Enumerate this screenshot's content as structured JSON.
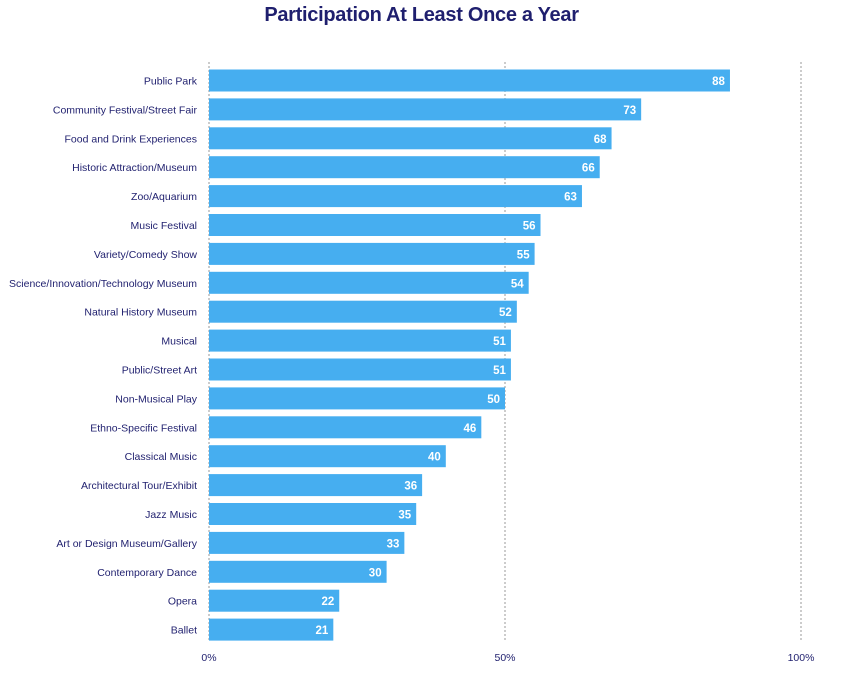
{
  "colors": {
    "bar": "#46aef0",
    "title": "#1f1f6e",
    "label": "#1f1f6e",
    "value": "#ffffff",
    "grid": "#9a9a9a"
  },
  "chart_data": {
    "type": "bar",
    "orientation": "horizontal",
    "title": "Participation At Least Once a Year",
    "xlabel": "",
    "ylabel": "",
    "xlim": [
      0,
      100
    ],
    "grid": true,
    "ticks": [
      {
        "value": 0,
        "label": "0%"
      },
      {
        "value": 50,
        "label": "50%"
      },
      {
        "value": 100,
        "label": "100%"
      }
    ],
    "categories": [
      "Public Park",
      "Community Festival/Street Fair",
      "Food and Drink Experiences",
      "Historic Attraction/Museum",
      "Zoo/Aquarium",
      "Music Festival",
      "Variety/Comedy Show",
      "Science/Innovation/Technology Museum",
      "Natural History Museum",
      "Musical",
      "Public/Street Art",
      "Non-Musical Play",
      "Ethno-Specific Festival",
      "Classical Music",
      "Architectural Tour/Exhibit",
      "Jazz Music",
      "Art or Design Museum/Gallery",
      "Contemporary Dance",
      "Opera",
      "Ballet"
    ],
    "values": [
      88,
      73,
      68,
      66,
      63,
      56,
      55,
      54,
      52,
      51,
      51,
      50,
      46,
      40,
      36,
      35,
      33,
      30,
      22,
      21
    ],
    "value_labels": [
      "88",
      "73",
      "68",
      "66",
      "63",
      "56",
      "55",
      "54",
      "52",
      "51",
      "51",
      "50",
      "46",
      "40",
      "36",
      "35",
      "33",
      "30",
      "22",
      "21"
    ]
  }
}
